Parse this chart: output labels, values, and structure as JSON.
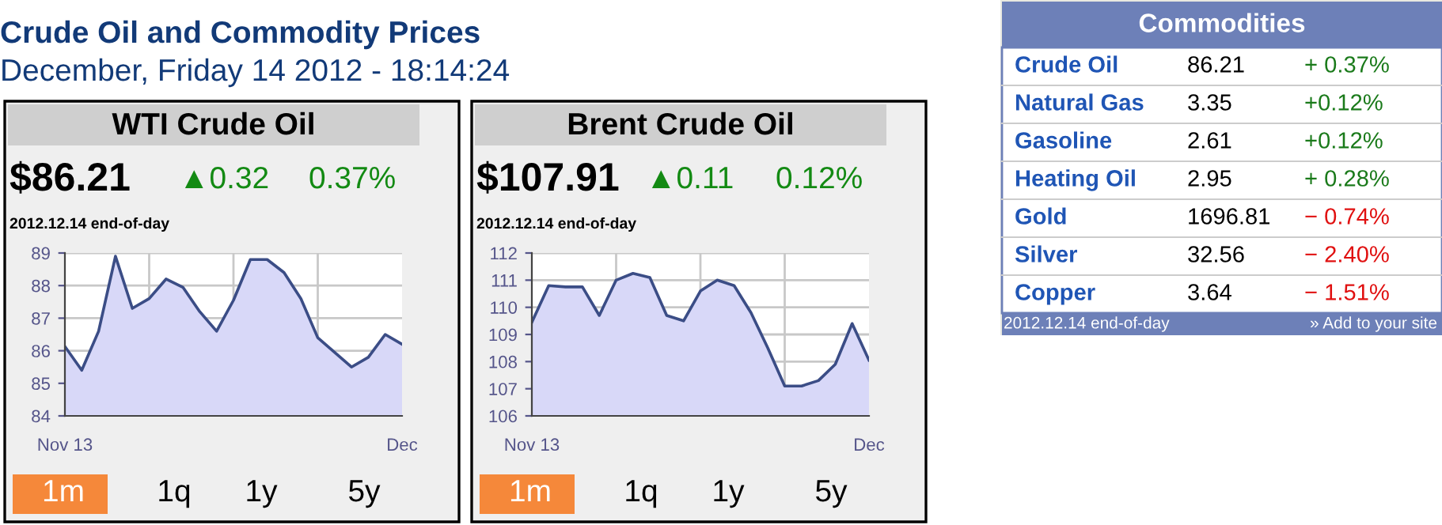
{
  "chart_data": [
    {
      "type": "area",
      "title": "WTI Crude Oil",
      "categories": [
        "Nov 13",
        null,
        null,
        null,
        null,
        null,
        null,
        null,
        null,
        null,
        null,
        null,
        null,
        null,
        null,
        null,
        null,
        null,
        null,
        null,
        "Dec"
      ],
      "series": [
        {
          "color": "#3b4d86",
          "values": [
            86.13,
            85.4,
            86.6,
            88.9,
            87.3,
            87.6,
            88.2,
            87.95,
            87.2,
            86.6,
            87.55,
            88.8,
            88.8,
            88.4,
            87.6,
            86.4,
            85.95,
            85.5,
            85.8,
            86.5,
            86.2
          ]
        }
      ],
      "ylim": [
        84,
        89
      ],
      "yticks": [
        84,
        85,
        86,
        87,
        88,
        89
      ],
      "grid": true,
      "annotations": [
        "$86.21",
        "▲0.32",
        "0.37%",
        "2012.12.14 end-of-day",
        "1m",
        "1q",
        "1y",
        "5y",
        "Crude Oil and Commodity Prices",
        "December, Friday 14 2012 - 18:14:24"
      ]
    },
    {
      "type": "area",
      "title": "Brent Crude Oil",
      "categories": [
        "Nov 13",
        null,
        null,
        null,
        null,
        null,
        null,
        null,
        null,
        null,
        null,
        null,
        null,
        null,
        null,
        null,
        null,
        null,
        null,
        null,
        "Dec"
      ],
      "series": [
        {
          "color": "#3b4d86",
          "values": [
            109.45,
            110.8,
            110.75,
            110.75,
            109.7,
            111.0,
            111.25,
            111.1,
            109.7,
            109.5,
            110.6,
            111.0,
            110.8,
            109.8,
            108.5,
            107.1,
            107.1,
            107.3,
            107.9,
            109.4,
            108.05
          ]
        }
      ],
      "ylim": [
        106,
        112
      ],
      "yticks": [
        106,
        107,
        108,
        109,
        110,
        111,
        112
      ],
      "grid": true,
      "annotations": [
        "$107.91",
        "▲0.11",
        "0.12%",
        "2012.12.14 end-of-day",
        "1m",
        "1q",
        "1y",
        "5y"
      ]
    },
    {
      "type": "other",
      "title": "Commodities",
      "annotations": [
        "Crude Oil",
        "86.21",
        "+ 0.37%",
        "Natural Gas",
        "3.35",
        "+0.12%",
        "Gasoline",
        "2.61",
        "+0.12%",
        "Heating Oil",
        "2.95",
        "+ 0.28%",
        "Gold",
        "1696.81",
        "− 0.74%",
        "Silver",
        "32.56",
        "− 2.40%",
        "Copper",
        "3.64",
        "− 1.51%",
        "2012.12.14 end-of-day",
        "» Add to your site"
      ],
      "colors": [
        "#1a7a1a",
        "#1a7a1a",
        "#1a7a1a",
        "#1a7a1a",
        "#e01010",
        "#e01010",
        "#e01010"
      ]
    }
  ]
}
